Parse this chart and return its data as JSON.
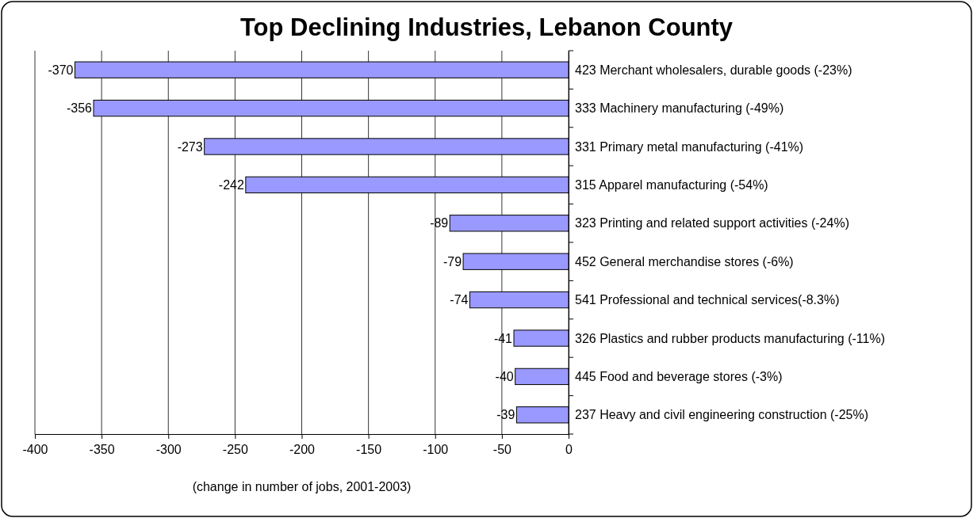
{
  "chart_data": {
    "type": "bar",
    "orientation": "horizontal",
    "title": "Top Declining Industries, Lebanon County",
    "xlabel": "(change in number of jobs, 2001-2003)",
    "categories": [
      "423 Merchant wholesalers, durable goods (-23%)",
      "333 Machinery manufacturing (-49%)",
      "331 Primary metal manufacturing (-41%)",
      "315 Apparel manufacturing (-54%)",
      "323 Printing and related support activities (-24%)",
      "452 General merchandise stores (-6%)",
      "541 Professional and technical services(-8.3%)",
      "326 Plastics and rubber products manufacturing (-11%)",
      "445 Food and beverage stores (-3%)",
      "237 Heavy and civil engineering construction (-25%)"
    ],
    "values": [
      -370,
      -356,
      -273,
      -242,
      -89,
      -79,
      -74,
      -41,
      -40,
      -39
    ],
    "color": "#9999ff",
    "data_labels": true,
    "grid": "x",
    "xlim": [
      -400,
      0
    ],
    "xticks": [
      -400,
      -350,
      -300,
      -250,
      -200,
      -150,
      -100,
      -50,
      0
    ]
  }
}
